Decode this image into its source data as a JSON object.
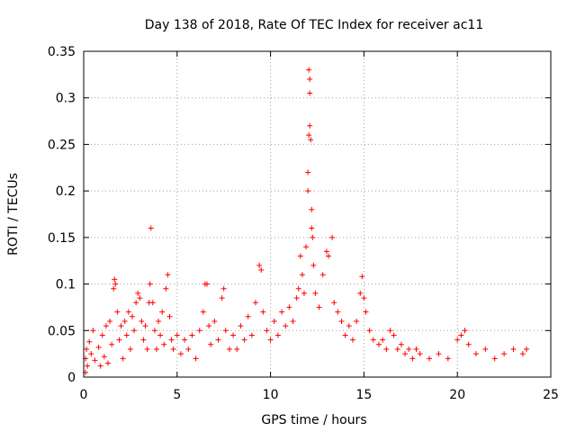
{
  "chart_data": {
    "type": "scatter",
    "title": "Day 138 of 2018, Rate Of TEC Index for receiver ac11",
    "xlabel": "GPS time / hours",
    "ylabel": "ROTI / TECUs",
    "xlim": [
      0,
      25
    ],
    "ylim": [
      0,
      0.35
    ],
    "xticks": [
      "0",
      "5",
      "10",
      "15",
      "20",
      "25"
    ],
    "yticks": [
      "0",
      "0.05",
      "0.1",
      "0.15",
      "0.2",
      "0.25",
      "0.3",
      "0.35"
    ],
    "xtick_values": [
      0,
      5,
      10,
      15,
      20,
      25
    ],
    "ytick_values": [
      0,
      0.05,
      0.1,
      0.15,
      0.2,
      0.25,
      0.3,
      0.35
    ],
    "grid": true,
    "marker": "+",
    "color": "#ff0000",
    "points": [
      [
        0.1,
        0.005
      ],
      [
        0.1,
        0.02
      ],
      [
        0.15,
        0.03
      ],
      [
        0.2,
        0.012
      ],
      [
        0.3,
        0.038
      ],
      [
        0.4,
        0.025
      ],
      [
        0.5,
        0.05
      ],
      [
        0.6,
        0.018
      ],
      [
        0.8,
        0.032
      ],
      [
        0.9,
        0.012
      ],
      [
        1.0,
        0.045
      ],
      [
        1.1,
        0.022
      ],
      [
        1.2,
        0.055
      ],
      [
        1.3,
        0.015
      ],
      [
        1.4,
        0.06
      ],
      [
        1.5,
        0.035
      ],
      [
        1.6,
        0.095
      ],
      [
        1.65,
        0.105
      ],
      [
        1.7,
        0.1
      ],
      [
        1.8,
        0.07
      ],
      [
        1.9,
        0.04
      ],
      [
        2.0,
        0.055
      ],
      [
        2.1,
        0.02
      ],
      [
        2.2,
        0.06
      ],
      [
        2.3,
        0.045
      ],
      [
        2.4,
        0.07
      ],
      [
        2.5,
        0.03
      ],
      [
        2.6,
        0.065
      ],
      [
        2.7,
        0.05
      ],
      [
        2.8,
        0.08
      ],
      [
        2.9,
        0.09
      ],
      [
        3.0,
        0.085
      ],
      [
        3.1,
        0.06
      ],
      [
        3.2,
        0.04
      ],
      [
        3.3,
        0.055
      ],
      [
        3.4,
        0.03
      ],
      [
        3.5,
        0.08
      ],
      [
        3.55,
        0.1
      ],
      [
        3.6,
        0.16
      ],
      [
        3.7,
        0.08
      ],
      [
        3.8,
        0.05
      ],
      [
        3.9,
        0.03
      ],
      [
        4.0,
        0.06
      ],
      [
        4.1,
        0.045
      ],
      [
        4.2,
        0.07
      ],
      [
        4.3,
        0.035
      ],
      [
        4.4,
        0.095
      ],
      [
        4.5,
        0.11
      ],
      [
        4.6,
        0.065
      ],
      [
        4.7,
        0.04
      ],
      [
        4.8,
        0.03
      ],
      [
        5.0,
        0.045
      ],
      [
        5.2,
        0.025
      ],
      [
        5.4,
        0.04
      ],
      [
        5.6,
        0.03
      ],
      [
        5.8,
        0.045
      ],
      [
        6.0,
        0.02
      ],
      [
        6.2,
        0.05
      ],
      [
        6.4,
        0.07
      ],
      [
        6.5,
        0.1
      ],
      [
        6.6,
        0.1
      ],
      [
        6.7,
        0.055
      ],
      [
        6.8,
        0.035
      ],
      [
        7.0,
        0.06
      ],
      [
        7.2,
        0.04
      ],
      [
        7.4,
        0.085
      ],
      [
        7.5,
        0.095
      ],
      [
        7.6,
        0.05
      ],
      [
        7.8,
        0.03
      ],
      [
        8.0,
        0.045
      ],
      [
        8.2,
        0.03
      ],
      [
        8.4,
        0.055
      ],
      [
        8.6,
        0.04
      ],
      [
        8.8,
        0.065
      ],
      [
        9.0,
        0.045
      ],
      [
        9.2,
        0.08
      ],
      [
        9.4,
        0.12
      ],
      [
        9.5,
        0.115
      ],
      [
        9.6,
        0.07
      ],
      [
        9.8,
        0.05
      ],
      [
        10.0,
        0.04
      ],
      [
        10.2,
        0.06
      ],
      [
        10.4,
        0.045
      ],
      [
        10.6,
        0.07
      ],
      [
        10.8,
        0.055
      ],
      [
        11.0,
        0.075
      ],
      [
        11.2,
        0.06
      ],
      [
        11.4,
        0.085
      ],
      [
        11.5,
        0.095
      ],
      [
        11.6,
        0.13
      ],
      [
        11.7,
        0.11
      ],
      [
        11.8,
        0.09
      ],
      [
        11.9,
        0.14
      ],
      [
        12.0,
        0.2
      ],
      [
        12.0,
        0.22
      ],
      [
        12.05,
        0.26
      ],
      [
        12.05,
        0.33
      ],
      [
        12.1,
        0.32
      ],
      [
        12.1,
        0.305
      ],
      [
        12.1,
        0.27
      ],
      [
        12.15,
        0.255
      ],
      [
        12.2,
        0.18
      ],
      [
        12.2,
        0.16
      ],
      [
        12.25,
        0.15
      ],
      [
        12.3,
        0.12
      ],
      [
        12.4,
        0.09
      ],
      [
        12.6,
        0.075
      ],
      [
        12.8,
        0.11
      ],
      [
        13.0,
        0.135
      ],
      [
        13.1,
        0.13
      ],
      [
        13.3,
        0.15
      ],
      [
        13.4,
        0.08
      ],
      [
        13.6,
        0.07
      ],
      [
        13.8,
        0.06
      ],
      [
        14.0,
        0.045
      ],
      [
        14.2,
        0.055
      ],
      [
        14.4,
        0.04
      ],
      [
        14.6,
        0.06
      ],
      [
        14.8,
        0.09
      ],
      [
        14.9,
        0.108
      ],
      [
        15.0,
        0.085
      ],
      [
        15.1,
        0.07
      ],
      [
        15.3,
        0.05
      ],
      [
        15.5,
        0.04
      ],
      [
        15.8,
        0.035
      ],
      [
        16.0,
        0.04
      ],
      [
        16.2,
        0.03
      ],
      [
        16.4,
        0.05
      ],
      [
        16.6,
        0.045
      ],
      [
        16.8,
        0.03
      ],
      [
        17.0,
        0.035
      ],
      [
        17.2,
        0.025
      ],
      [
        17.4,
        0.03
      ],
      [
        17.6,
        0.02
      ],
      [
        17.8,
        0.03
      ],
      [
        18.0,
        0.025
      ],
      [
        18.5,
        0.02
      ],
      [
        19.0,
        0.025
      ],
      [
        19.5,
        0.02
      ],
      [
        20.0,
        0.04
      ],
      [
        20.2,
        0.045
      ],
      [
        20.4,
        0.05
      ],
      [
        20.6,
        0.035
      ],
      [
        21.0,
        0.025
      ],
      [
        21.5,
        0.03
      ],
      [
        22.0,
        0.02
      ],
      [
        22.5,
        0.025
      ],
      [
        23.0,
        0.03
      ],
      [
        23.5,
        0.025
      ],
      [
        23.7,
        0.03
      ]
    ]
  }
}
